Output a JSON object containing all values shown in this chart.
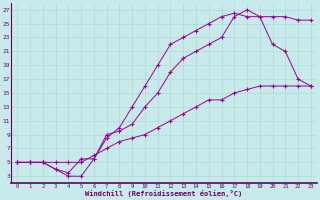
{
  "xlabel": "Windchill (Refroidissement éolien,°C)",
  "bg_color": "#c8eaea",
  "line_color": "#990099",
  "grid_color": "#b0d8d8",
  "xlim": [
    -0.5,
    23.5
  ],
  "ylim": [
    2,
    28
  ],
  "xticks": [
    0,
    1,
    2,
    3,
    4,
    5,
    6,
    7,
    8,
    9,
    10,
    11,
    12,
    13,
    14,
    15,
    16,
    17,
    18,
    19,
    20,
    21,
    22,
    23
  ],
  "yticks": [
    3,
    5,
    7,
    9,
    11,
    13,
    15,
    17,
    19,
    21,
    23,
    25,
    27
  ],
  "line1_x": [
    0,
    1,
    2,
    3,
    4,
    5,
    6,
    7,
    8,
    9,
    10,
    11,
    12,
    13,
    14,
    15,
    16,
    17,
    18,
    19,
    20,
    21,
    22,
    23
  ],
  "line1_y": [
    5,
    5,
    5,
    4,
    3,
    3,
    5.5,
    8.5,
    10,
    13,
    16,
    19,
    22,
    23,
    24,
    25,
    26,
    26.5,
    26,
    26,
    26,
    26,
    25.5,
    25.5
  ],
  "line2_x": [
    0,
    1,
    2,
    3,
    4,
    5,
    6,
    7,
    8,
    9,
    10,
    11,
    12,
    13,
    14,
    15,
    16,
    17,
    18,
    19,
    20,
    21,
    22,
    23
  ],
  "line2_y": [
    5,
    5,
    5,
    4,
    3.5,
    5.5,
    5.5,
    9,
    9.5,
    10.5,
    13,
    15,
    18,
    20,
    21,
    22,
    23,
    26,
    27,
    26,
    22,
    21,
    17,
    16
  ],
  "line3_x": [
    0,
    1,
    2,
    3,
    4,
    5,
    6,
    7,
    8,
    9,
    10,
    11,
    12,
    13,
    14,
    15,
    16,
    17,
    18,
    19,
    20,
    21,
    22,
    23
  ],
  "line3_y": [
    5,
    5,
    5,
    5,
    5,
    5,
    6,
    7,
    8,
    8.5,
    9,
    10,
    11,
    12,
    13,
    14,
    14,
    15,
    15.5,
    16,
    16,
    16,
    16,
    16
  ],
  "marker": "+",
  "markersize": 3,
  "markeredgewidth": 0.8,
  "linewidth": 0.7
}
